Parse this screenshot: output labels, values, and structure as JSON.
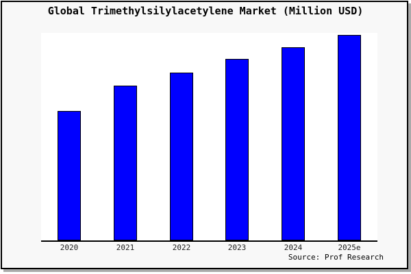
{
  "chart_data": {
    "type": "bar",
    "title": "Global Trimethylsilylacetylene Market (Million USD)",
    "categories": [
      "2020",
      "2021",
      "2022",
      "2023",
      "2024",
      "2025e"
    ],
    "values": [
      189,
      226,
      245,
      265,
      282,
      300
    ],
    "value_scale": "relative units (no y-axis tick labels shown in chart)",
    "xlabel": "",
    "ylabel": "",
    "ylim": [
      0,
      303
    ],
    "grid": false,
    "legend": false,
    "bar_color": "#0000ff",
    "bar_outline_color": "#000000"
  },
  "footer": {
    "source_note": "Source: Prof Research"
  },
  "colors": {
    "bar": "#0000ff",
    "bar_outline": "#000000",
    "plot_background": "#ffffff",
    "card_background": "#f8f8f8",
    "frame_border": "#000000",
    "frame_shadow": "#aaaaaa",
    "text": "#000000"
  }
}
